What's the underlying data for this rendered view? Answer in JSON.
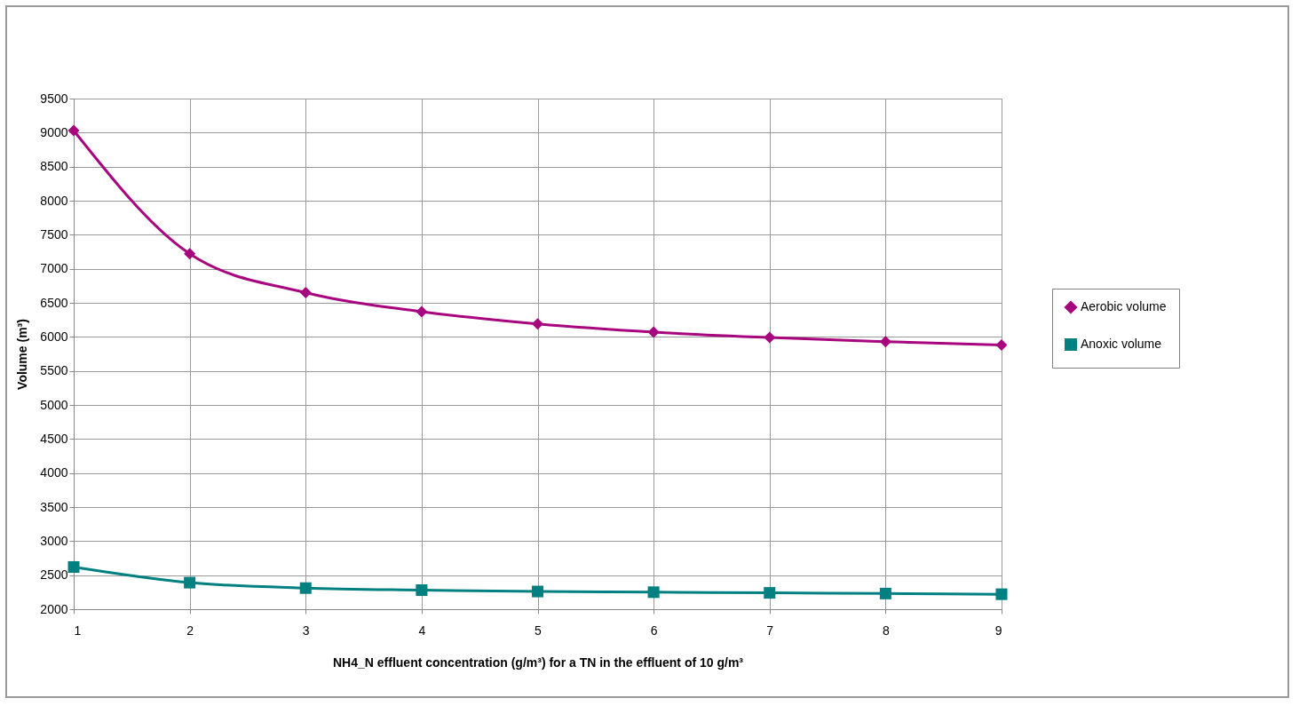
{
  "chart_data": {
    "type": "line",
    "xlabel": "NH4_N effluent concentration (g/m³) for a TN in the effluent of 10 g/m³",
    "ylabel": "Volume (m³)",
    "x": [
      1,
      2,
      3,
      4,
      5,
      6,
      7,
      8,
      9
    ],
    "series": [
      {
        "name": "Aerobic volume",
        "color": "#a8067e",
        "marker": "diamond",
        "values": [
          9030,
          7220,
          6650,
          6370,
          6190,
          6070,
          5990,
          5930,
          5880
        ]
      },
      {
        "name": "Anoxic volume",
        "color": "#008080",
        "marker": "square",
        "values": [
          2620,
          2390,
          2310,
          2280,
          2260,
          2250,
          2240,
          2230,
          2220
        ]
      }
    ],
    "xlim": [
      1,
      9
    ],
    "xticks": [
      1,
      2,
      3,
      4,
      5,
      6,
      7,
      8,
      9
    ],
    "ylim": [
      2000,
      9500
    ],
    "yticks": [
      2000,
      2500,
      3000,
      3500,
      4000,
      4500,
      5000,
      5500,
      6000,
      6500,
      7000,
      7500,
      8000,
      8500,
      9000,
      9500
    ],
    "grid": true,
    "legend": "right",
    "line_style": "solid"
  }
}
